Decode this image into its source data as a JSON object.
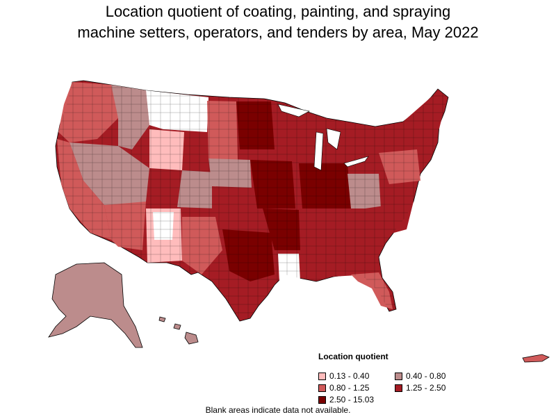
{
  "title": {
    "line1": "Location quotient of coating, painting, and spraying",
    "line2": "machine setters, operators, and tenders by area, May 2022"
  },
  "legend": {
    "title": "Location quotient",
    "items": [
      {
        "label": "0.13 - 0.40",
        "color": "#ffbcbc"
      },
      {
        "label": "0.40 - 0.80",
        "color": "#bc8c8c"
      },
      {
        "label": "0.80 - 1.25",
        "color": "#d05a5a"
      },
      {
        "label": "1.25 - 2.50",
        "color": "#a51c24"
      },
      {
        "label": "2.50 - 15.03",
        "color": "#7a0000"
      }
    ]
  },
  "footnote": "Blank areas indicate data not available.",
  "colors": {
    "no_data": "#ffffff",
    "border": "#000000"
  }
}
